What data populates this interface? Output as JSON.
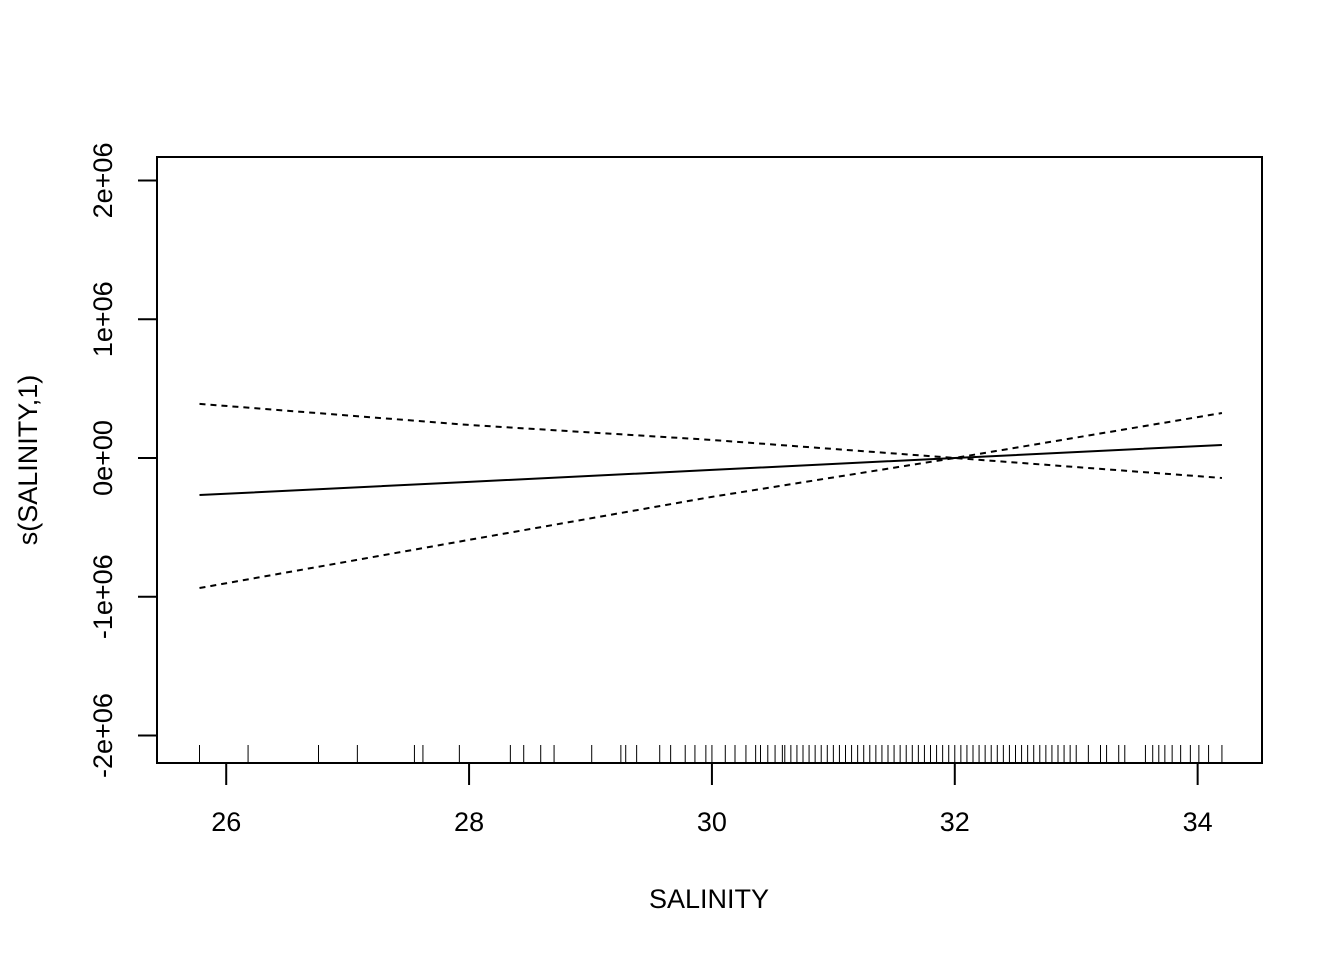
{
  "chart_data": {
    "type": "line",
    "xlabel": "SALINITY",
    "ylabel": "s(SALINITY,1)",
    "x": [
      25.78,
      28,
      30,
      32,
      34.2
    ],
    "series": [
      {
        "color": "#000000",
        "dashed": false,
        "values": [
          -267000,
          -172000,
          -86000,
          0,
          94000
        ]
      },
      {
        "color": "#000000",
        "dashed": true,
        "values": [
          390000,
          238000,
          130000,
          0,
          -144000
        ]
      },
      {
        "color": "#000000",
        "dashed": true,
        "values": [
          -937000,
          -590000,
          -280000,
          0,
          324000
        ]
      }
    ],
    "xlim": [
      25.43,
      34.53
    ],
    "ylim": [
      -2198000,
      2169000
    ],
    "xticks": [
      26,
      28,
      30,
      32,
      34
    ],
    "yticks": [
      {
        "value": -2000000,
        "label": "-2e+06"
      },
      {
        "value": -1000000,
        "label": "-1e+06"
      },
      {
        "value": 0,
        "label": "0e+00"
      },
      {
        "value": 1000000,
        "label": "1e+06"
      },
      {
        "value": 2000000,
        "label": "2e+06"
      }
    ],
    "rug": [
      25.78,
      26.18,
      26.76,
      27.08,
      27.55,
      27.62,
      27.92,
      28.34,
      28.45,
      28.59,
      28.7,
      29.01,
      29.25,
      29.29,
      29.38,
      29.57,
      29.66,
      29.78,
      29.86,
      29.95,
      30.0,
      30.11,
      30.19,
      30.28,
      30.36,
      30.4,
      30.46,
      30.52,
      30.58,
      30.6,
      30.65,
      30.7,
      30.75,
      30.8,
      30.85,
      30.9,
      30.95,
      31.0,
      31.05,
      31.1,
      31.15,
      31.2,
      31.25,
      31.3,
      31.35,
      31.4,
      31.45,
      31.5,
      31.55,
      31.6,
      31.65,
      31.7,
      31.75,
      31.8,
      31.85,
      31.9,
      31.95,
      32.0,
      32.05,
      32.1,
      32.15,
      32.2,
      32.25,
      32.3,
      32.35,
      32.4,
      32.45,
      32.5,
      32.55,
      32.6,
      32.65,
      32.7,
      32.75,
      32.8,
      32.85,
      32.9,
      32.95,
      33.0,
      33.1,
      33.2,
      33.25,
      33.35,
      33.4,
      33.57,
      33.63,
      33.68,
      33.73,
      33.79,
      33.86,
      33.94,
      34.01,
      34.09,
      34.2
    ]
  }
}
